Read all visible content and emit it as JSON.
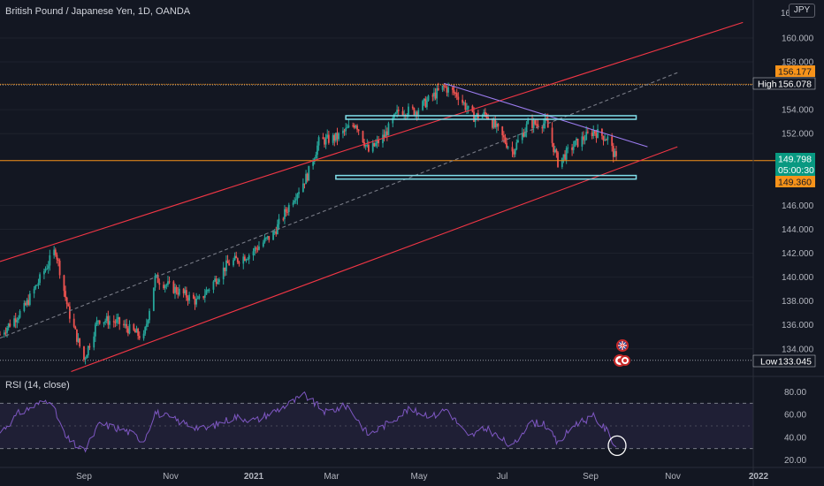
{
  "symbol_title": "British Pound / Japanese Yen, 1D, OANDA",
  "currency_button": "JPY",
  "rsi_title": "RSI (14, close)",
  "price_axis": {
    "ticks": [
      {
        "value": 160,
        "label": "160.000"
      },
      {
        "value": 158,
        "label": "158.000"
      },
      {
        "value": 154,
        "label": "154.000"
      },
      {
        "value": 152,
        "label": "152.000"
      },
      {
        "value": 146,
        "label": "146.000"
      },
      {
        "value": 144,
        "label": "144.000"
      },
      {
        "value": 142,
        "label": "142.000"
      },
      {
        "value": 140,
        "label": "140.000"
      },
      {
        "value": 138,
        "label": "138.000"
      },
      {
        "value": 136,
        "label": "136.000"
      },
      {
        "value": 134,
        "label": "134.000"
      }
    ],
    "top_partial_label": "16",
    "labels": {
      "level_upper": {
        "text": "156.177",
        "value": 156.177,
        "color": "#f7931a"
      },
      "high": {
        "tag": "High",
        "text": "156.078",
        "value": 156.078
      },
      "last_price": {
        "text": "149.798",
        "value": 149.798,
        "color": "#089981"
      },
      "countdown": {
        "text": "05:00:30"
      },
      "level_lower": {
        "text": "149.360",
        "value": 149.36,
        "color": "#f7931a"
      },
      "low": {
        "tag": "Low",
        "text": "133.045",
        "value": 133.045
      }
    }
  },
  "rsi_axis": {
    "ticks": [
      {
        "value": 80,
        "label": "80.00"
      },
      {
        "value": 60,
        "label": "60.00"
      },
      {
        "value": 40,
        "label": "40.00"
      },
      {
        "value": 20,
        "label": "20.00"
      }
    ],
    "band": [
      30,
      70
    ],
    "midline": 50
  },
  "time_axis": [
    "Sep",
    "Nov",
    "2021",
    "Mar",
    "May",
    "Jul",
    "Sep",
    "Nov",
    "2022"
  ],
  "colors": {
    "background": "#131722",
    "up": "#26a69a",
    "down": "#ef5350",
    "channel": "#f23645",
    "level": "#f7931a",
    "box": "#80deea",
    "trendline": "#9c7cf0",
    "rsi_line": "#7e57c2",
    "rsi_band": "#7e57c2",
    "grid": "#1e222d"
  },
  "icons": [
    "uk-flag-event-icon",
    "japan-flag-event-icon"
  ],
  "chart_data": {
    "type": "candlestick",
    "instrument": "British Pound / Japanese Yen",
    "interval": "1D",
    "source": "OANDA",
    "x_range": [
      "2020-07-24",
      "2021-09-30"
    ],
    "y_range": [
      132.1,
      161.3
    ],
    "series_approx_close": [
      {
        "date": "2020-07-24",
        "close": 135.2
      },
      {
        "date": "2020-08-10",
        "close": 137.4
      },
      {
        "date": "2020-08-20",
        "close": 139.6
      },
      {
        "date": "2020-09-01",
        "close": 142.3
      },
      {
        "date": "2020-09-10",
        "close": 137.2
      },
      {
        "date": "2020-09-21",
        "close": 133.1
      },
      {
        "date": "2020-10-01",
        "close": 136.5
      },
      {
        "date": "2020-10-15",
        "close": 136.2
      },
      {
        "date": "2020-11-02",
        "close": 134.9
      },
      {
        "date": "2020-11-10",
        "close": 139.9
      },
      {
        "date": "2020-11-25",
        "close": 138.9
      },
      {
        "date": "2020-12-10",
        "close": 137.9
      },
      {
        "date": "2020-12-31",
        "close": 141.1
      },
      {
        "date": "2021-01-15",
        "close": 141.9
      },
      {
        "date": "2021-02-01",
        "close": 143.6
      },
      {
        "date": "2021-02-15",
        "close": 146.6
      },
      {
        "date": "2021-02-25",
        "close": 148.5
      },
      {
        "date": "2021-03-05",
        "close": 151.3
      },
      {
        "date": "2021-03-18",
        "close": 151.7
      },
      {
        "date": "2021-03-31",
        "close": 152.9
      },
      {
        "date": "2021-04-09",
        "close": 150.5
      },
      {
        "date": "2021-04-20",
        "close": 151.8
      },
      {
        "date": "2021-04-30",
        "close": 153.9
      },
      {
        "date": "2021-05-12",
        "close": 153.9
      },
      {
        "date": "2021-06-01",
        "close": 155.9
      },
      {
        "date": "2021-06-11",
        "close": 155.2
      },
      {
        "date": "2021-06-21",
        "close": 153.4
      },
      {
        "date": "2021-07-01",
        "close": 153.6
      },
      {
        "date": "2021-07-19",
        "close": 150.5
      },
      {
        "date": "2021-07-30",
        "close": 152.8
      },
      {
        "date": "2021-08-12",
        "close": 152.9
      },
      {
        "date": "2021-08-20",
        "close": 149.6
      },
      {
        "date": "2021-09-01",
        "close": 151.1
      },
      {
        "date": "2021-09-14",
        "close": 152.2
      },
      {
        "date": "2021-09-24",
        "close": 151.6
      },
      {
        "date": "2021-09-30",
        "close": 149.8
      }
    ],
    "rsi_approx": [
      {
        "date": "2020-07-24",
        "value": 44
      },
      {
        "date": "2020-08-06",
        "value": 61
      },
      {
        "date": "2020-08-28",
        "value": 74
      },
      {
        "date": "2020-09-08",
        "value": 40
      },
      {
        "date": "2020-09-21",
        "value": 27
      },
      {
        "date": "2020-10-02",
        "value": 52
      },
      {
        "date": "2020-10-20",
        "value": 46
      },
      {
        "date": "2020-11-02",
        "value": 37
      },
      {
        "date": "2020-11-10",
        "value": 62
      },
      {
        "date": "2020-12-01",
        "value": 52
      },
      {
        "date": "2020-12-15",
        "value": 47
      },
      {
        "date": "2021-01-05",
        "value": 58
      },
      {
        "date": "2021-01-20",
        "value": 55
      },
      {
        "date": "2021-02-10",
        "value": 68
      },
      {
        "date": "2021-02-23",
        "value": 77
      },
      {
        "date": "2021-03-10",
        "value": 62
      },
      {
        "date": "2021-03-25",
        "value": 68
      },
      {
        "date": "2021-04-09",
        "value": 42
      },
      {
        "date": "2021-04-22",
        "value": 52
      },
      {
        "date": "2021-05-06",
        "value": 64
      },
      {
        "date": "2021-05-25",
        "value": 59
      },
      {
        "date": "2021-06-03",
        "value": 65
      },
      {
        "date": "2021-06-18",
        "value": 40
      },
      {
        "date": "2021-07-01",
        "value": 48
      },
      {
        "date": "2021-07-19",
        "value": 31
      },
      {
        "date": "2021-07-30",
        "value": 52
      },
      {
        "date": "2021-08-10",
        "value": 53
      },
      {
        "date": "2021-08-20",
        "value": 34
      },
      {
        "date": "2021-09-01",
        "value": 52
      },
      {
        "date": "2021-09-14",
        "value": 58
      },
      {
        "date": "2021-09-24",
        "value": 45
      },
      {
        "date": "2021-09-30",
        "value": 31
      }
    ],
    "drawings": {
      "ascending_channel": {
        "upper": [
          {
            "date": "2020-07-24",
            "price": 141.3
          },
          {
            "date": "2021-12-28",
            "price": 161.3
          }
        ],
        "lower": [
          {
            "date": "2020-09-12",
            "price": 132.1
          },
          {
            "date": "2021-11-12",
            "price": 150.9
          }
        ],
        "midline": [
          {
            "date": "2020-07-24",
            "price": 134.9
          },
          {
            "date": "2021-11-12",
            "price": 157.1
          }
        ]
      },
      "horizontal_levels": [
        156.177,
        149.36
      ],
      "resistance_zone": [
        153.2,
        153.5
      ],
      "support_zone": [
        148.2,
        148.5
      ],
      "descending_trendline": [
        {
          "date": "2021-06-01",
          "price": 156.2
        },
        {
          "date": "2021-10-22",
          "price": 150.9
        }
      ],
      "rsi_highlight": {
        "date": "2021-09-30",
        "value": 31
      }
    }
  }
}
